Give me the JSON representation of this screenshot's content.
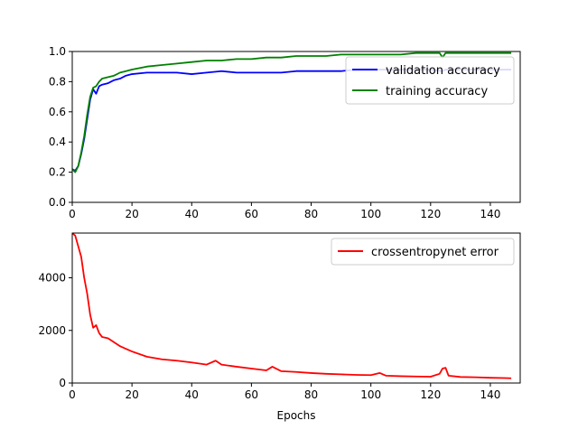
{
  "chart_data": [
    {
      "type": "line",
      "title": "",
      "xlabel": "",
      "ylabel": "",
      "xlim": [
        0,
        150
      ],
      "ylim": [
        0,
        1.0
      ],
      "xticks": [
        0,
        20,
        40,
        60,
        80,
        100,
        120,
        140
      ],
      "yticks": [
        0.0,
        0.2,
        0.4,
        0.6,
        0.8,
        1.0
      ],
      "xtick_labels": [
        "0",
        "20",
        "40",
        "60",
        "80",
        "100",
        "120",
        "140"
      ],
      "ytick_labels": [
        "0.0",
        "0.2",
        "0.4",
        "0.6",
        "0.8",
        "1.0"
      ],
      "grid": false,
      "legend_position": "top-right",
      "series": [
        {
          "name": "validation accuracy",
          "color": "#0000ff",
          "x": [
            0,
            1,
            2,
            3,
            4,
            5,
            6,
            7,
            8,
            9,
            10,
            12,
            14,
            16,
            18,
            20,
            25,
            30,
            35,
            40,
            45,
            50,
            55,
            60,
            65,
            70,
            75,
            80,
            85,
            90,
            95,
            100,
            105,
            110,
            115,
            120,
            124,
            125,
            130,
            135,
            140,
            145,
            147
          ],
          "y": [
            0.22,
            0.21,
            0.24,
            0.32,
            0.42,
            0.55,
            0.68,
            0.75,
            0.72,
            0.77,
            0.78,
            0.79,
            0.81,
            0.82,
            0.84,
            0.85,
            0.86,
            0.86,
            0.86,
            0.85,
            0.86,
            0.87,
            0.86,
            0.86,
            0.86,
            0.86,
            0.87,
            0.87,
            0.87,
            0.87,
            0.88,
            0.88,
            0.88,
            0.88,
            0.88,
            0.88,
            0.87,
            0.88,
            0.88,
            0.88,
            0.88,
            0.88,
            0.88
          ]
        },
        {
          "name": "training accuracy",
          "color": "#008000",
          "x": [
            0,
            1,
            2,
            3,
            4,
            5,
            6,
            7,
            8,
            9,
            10,
            12,
            14,
            16,
            18,
            20,
            25,
            30,
            35,
            40,
            45,
            50,
            55,
            60,
            65,
            70,
            75,
            80,
            85,
            90,
            95,
            100,
            105,
            110,
            115,
            120,
            123,
            124,
            125,
            130,
            135,
            140,
            145,
            147
          ],
          "y": [
            0.22,
            0.2,
            0.24,
            0.33,
            0.44,
            0.58,
            0.7,
            0.76,
            0.77,
            0.8,
            0.82,
            0.83,
            0.84,
            0.86,
            0.87,
            0.88,
            0.9,
            0.91,
            0.92,
            0.93,
            0.94,
            0.94,
            0.95,
            0.95,
            0.96,
            0.96,
            0.97,
            0.97,
            0.97,
            0.98,
            0.98,
            0.98,
            0.98,
            0.98,
            0.99,
            0.99,
            0.99,
            0.96,
            0.99,
            0.99,
            0.99,
            0.99,
            0.99,
            0.99
          ]
        }
      ]
    },
    {
      "type": "line",
      "title": "",
      "xlabel": "Epochs",
      "ylabel": "",
      "xlim": [
        0,
        150
      ],
      "ylim": [
        0,
        5700
      ],
      "xticks": [
        0,
        20,
        40,
        60,
        80,
        100,
        120,
        140
      ],
      "yticks": [
        0,
        2000,
        4000
      ],
      "xtick_labels": [
        "0",
        "20",
        "40",
        "60",
        "80",
        "100",
        "120",
        "140"
      ],
      "ytick_labels": [
        "0",
        "2000",
        "4000"
      ],
      "grid": false,
      "legend_position": "top-right",
      "series": [
        {
          "name": "crossentropynet error",
          "color": "#ff0000",
          "x": [
            0,
            1,
            2,
            3,
            4,
            5,
            6,
            7,
            8,
            9,
            10,
            12,
            14,
            16,
            18,
            20,
            25,
            30,
            35,
            40,
            45,
            48,
            50,
            55,
            60,
            65,
            67,
            70,
            75,
            80,
            85,
            90,
            95,
            100,
            103,
            105,
            110,
            115,
            120,
            123,
            124,
            125,
            126,
            130,
            135,
            140,
            145,
            147
          ],
          "y": [
            5700,
            5600,
            5200,
            4800,
            4000,
            3400,
            2600,
            2100,
            2200,
            1900,
            1750,
            1700,
            1550,
            1400,
            1300,
            1200,
            1000,
            900,
            850,
            780,
            700,
            850,
            700,
            620,
            550,
            480,
            620,
            450,
            420,
            380,
            350,
            330,
            310,
            300,
            380,
            280,
            260,
            250,
            240,
            350,
            550,
            580,
            280,
            230,
            220,
            200,
            190,
            180
          ]
        }
      ]
    }
  ]
}
